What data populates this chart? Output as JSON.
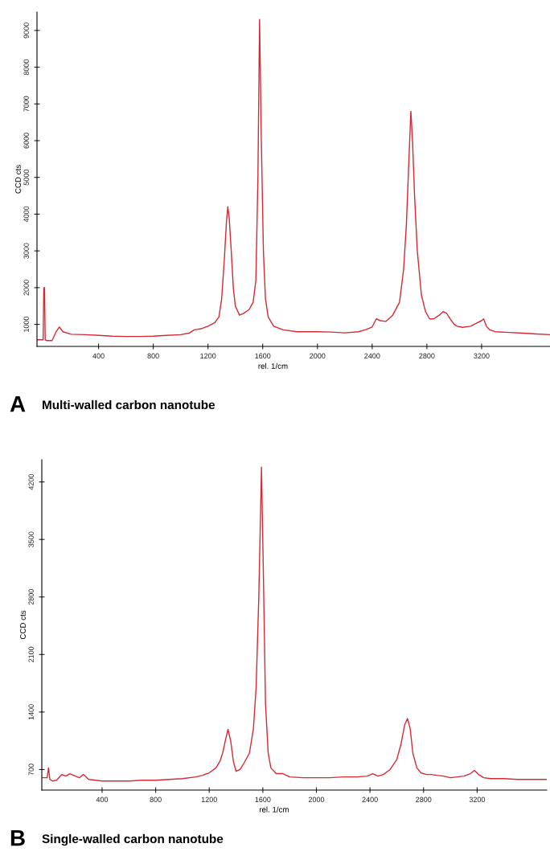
{
  "chart_data": [
    {
      "type": "line",
      "title": "A",
      "subtitle": "Multi-walled carbon nanotube",
      "xlabel": "rel. 1/cm",
      "ylabel": "CCD cts",
      "xlim": [
        -50,
        3700
      ],
      "ylim": [
        400,
        9500
      ],
      "xticks": [
        400,
        800,
        1200,
        1600,
        2000,
        2400,
        2800,
        3200
      ],
      "yticks": [
        1000,
        2000,
        3000,
        4000,
        5000,
        6000,
        7000,
        8000,
        9000
      ],
      "grid": false,
      "legend": false,
      "series": [
        {
          "color": "#d42a35",
          "x": [
            -45,
            -5,
            0,
            5,
            10,
            20,
            60,
            90,
            113,
            140,
            200,
            300,
            400,
            500,
            600,
            700,
            800,
            900,
            1000,
            1060,
            1100,
            1150,
            1200,
            1250,
            1280,
            1300,
            1320,
            1335,
            1345,
            1355,
            1370,
            1385,
            1400,
            1430,
            1460,
            1500,
            1530,
            1550,
            1565,
            1577,
            1590,
            1605,
            1620,
            1640,
            1680,
            1750,
            1850,
            2000,
            2100,
            2200,
            2300,
            2350,
            2400,
            2430,
            2460,
            2500,
            2550,
            2600,
            2630,
            2650,
            2670,
            2683,
            2695,
            2710,
            2730,
            2760,
            2790,
            2820,
            2850,
            2890,
            2920,
            2945,
            2970,
            3000,
            3020,
            3060,
            3120,
            3170,
            3200,
            3215,
            3235,
            3260,
            3300,
            3400,
            3500,
            3600,
            3700
          ],
          "values": [
            580,
            580,
            2000,
            2000,
            580,
            560,
            560,
            800,
            930,
            800,
            730,
            720,
            700,
            680,
            670,
            670,
            680,
            700,
            720,
            760,
            850,
            880,
            950,
            1050,
            1200,
            1700,
            2800,
            3800,
            4200,
            3900,
            3000,
            2000,
            1500,
            1250,
            1300,
            1400,
            1600,
            2200,
            5000,
            9300,
            6000,
            3000,
            1700,
            1200,
            950,
            850,
            800,
            800,
            790,
            770,
            800,
            850,
            930,
            1150,
            1100,
            1080,
            1250,
            1600,
            2500,
            3700,
            5600,
            6800,
            6000,
            4500,
            3000,
            1800,
            1350,
            1150,
            1150,
            1250,
            1350,
            1300,
            1150,
            1000,
            950,
            920,
            950,
            1050,
            1100,
            1150,
            950,
            850,
            800,
            780,
            760,
            740,
            720
          ]
        }
      ]
    },
    {
      "type": "line",
      "title": "B",
      "subtitle": "Single-walled carbon nanotube",
      "xlabel": "rel. 1/cm",
      "ylabel": "CCD cts",
      "xlim": [
        -50,
        3720
      ],
      "ylim": [
        450,
        4470
      ],
      "xticks": [
        400,
        800,
        1200,
        1600,
        2000,
        2400,
        2800,
        3200
      ],
      "yticks": [
        700,
        1400,
        2100,
        2800,
        3500,
        4200
      ],
      "grid": false,
      "legend": false,
      "series": [
        {
          "color": "#d42a35",
          "x": [
            -45,
            -10,
            0,
            10,
            30,
            60,
            100,
            130,
            160,
            200,
            230,
            260,
            300,
            400,
            500,
            600,
            700,
            800,
            900,
            1000,
            1100,
            1150,
            1200,
            1250,
            1280,
            1300,
            1320,
            1340,
            1360,
            1380,
            1400,
            1430,
            1460,
            1500,
            1530,
            1550,
            1570,
            1590,
            1605,
            1620,
            1640,
            1660,
            1700,
            1750,
            1800,
            1900,
            2000,
            2100,
            2200,
            2300,
            2380,
            2420,
            2460,
            2500,
            2550,
            2600,
            2630,
            2660,
            2680,
            2700,
            2720,
            2750,
            2780,
            2820,
            2860,
            2900,
            2950,
            3000,
            3100,
            3150,
            3180,
            3210,
            3250,
            3300,
            3400,
            3500,
            3600,
            3720
          ],
          "values": [
            600,
            600,
            720,
            580,
            560,
            570,
            640,
            620,
            650,
            620,
            600,
            640,
            580,
            560,
            560,
            560,
            570,
            570,
            580,
            590,
            610,
            630,
            660,
            720,
            800,
            900,
            1050,
            1190,
            1050,
            800,
            680,
            700,
            780,
            900,
            1200,
            1700,
            2800,
            4380,
            3000,
            1500,
            900,
            720,
            650,
            650,
            610,
            600,
            600,
            600,
            610,
            610,
            620,
            650,
            620,
            640,
            700,
            820,
            1000,
            1250,
            1320,
            1200,
            900,
            720,
            660,
            640,
            640,
            630,
            620,
            600,
            620,
            650,
            690,
            640,
            600,
            590,
            590,
            580,
            580,
            580
          ]
        }
      ]
    }
  ]
}
